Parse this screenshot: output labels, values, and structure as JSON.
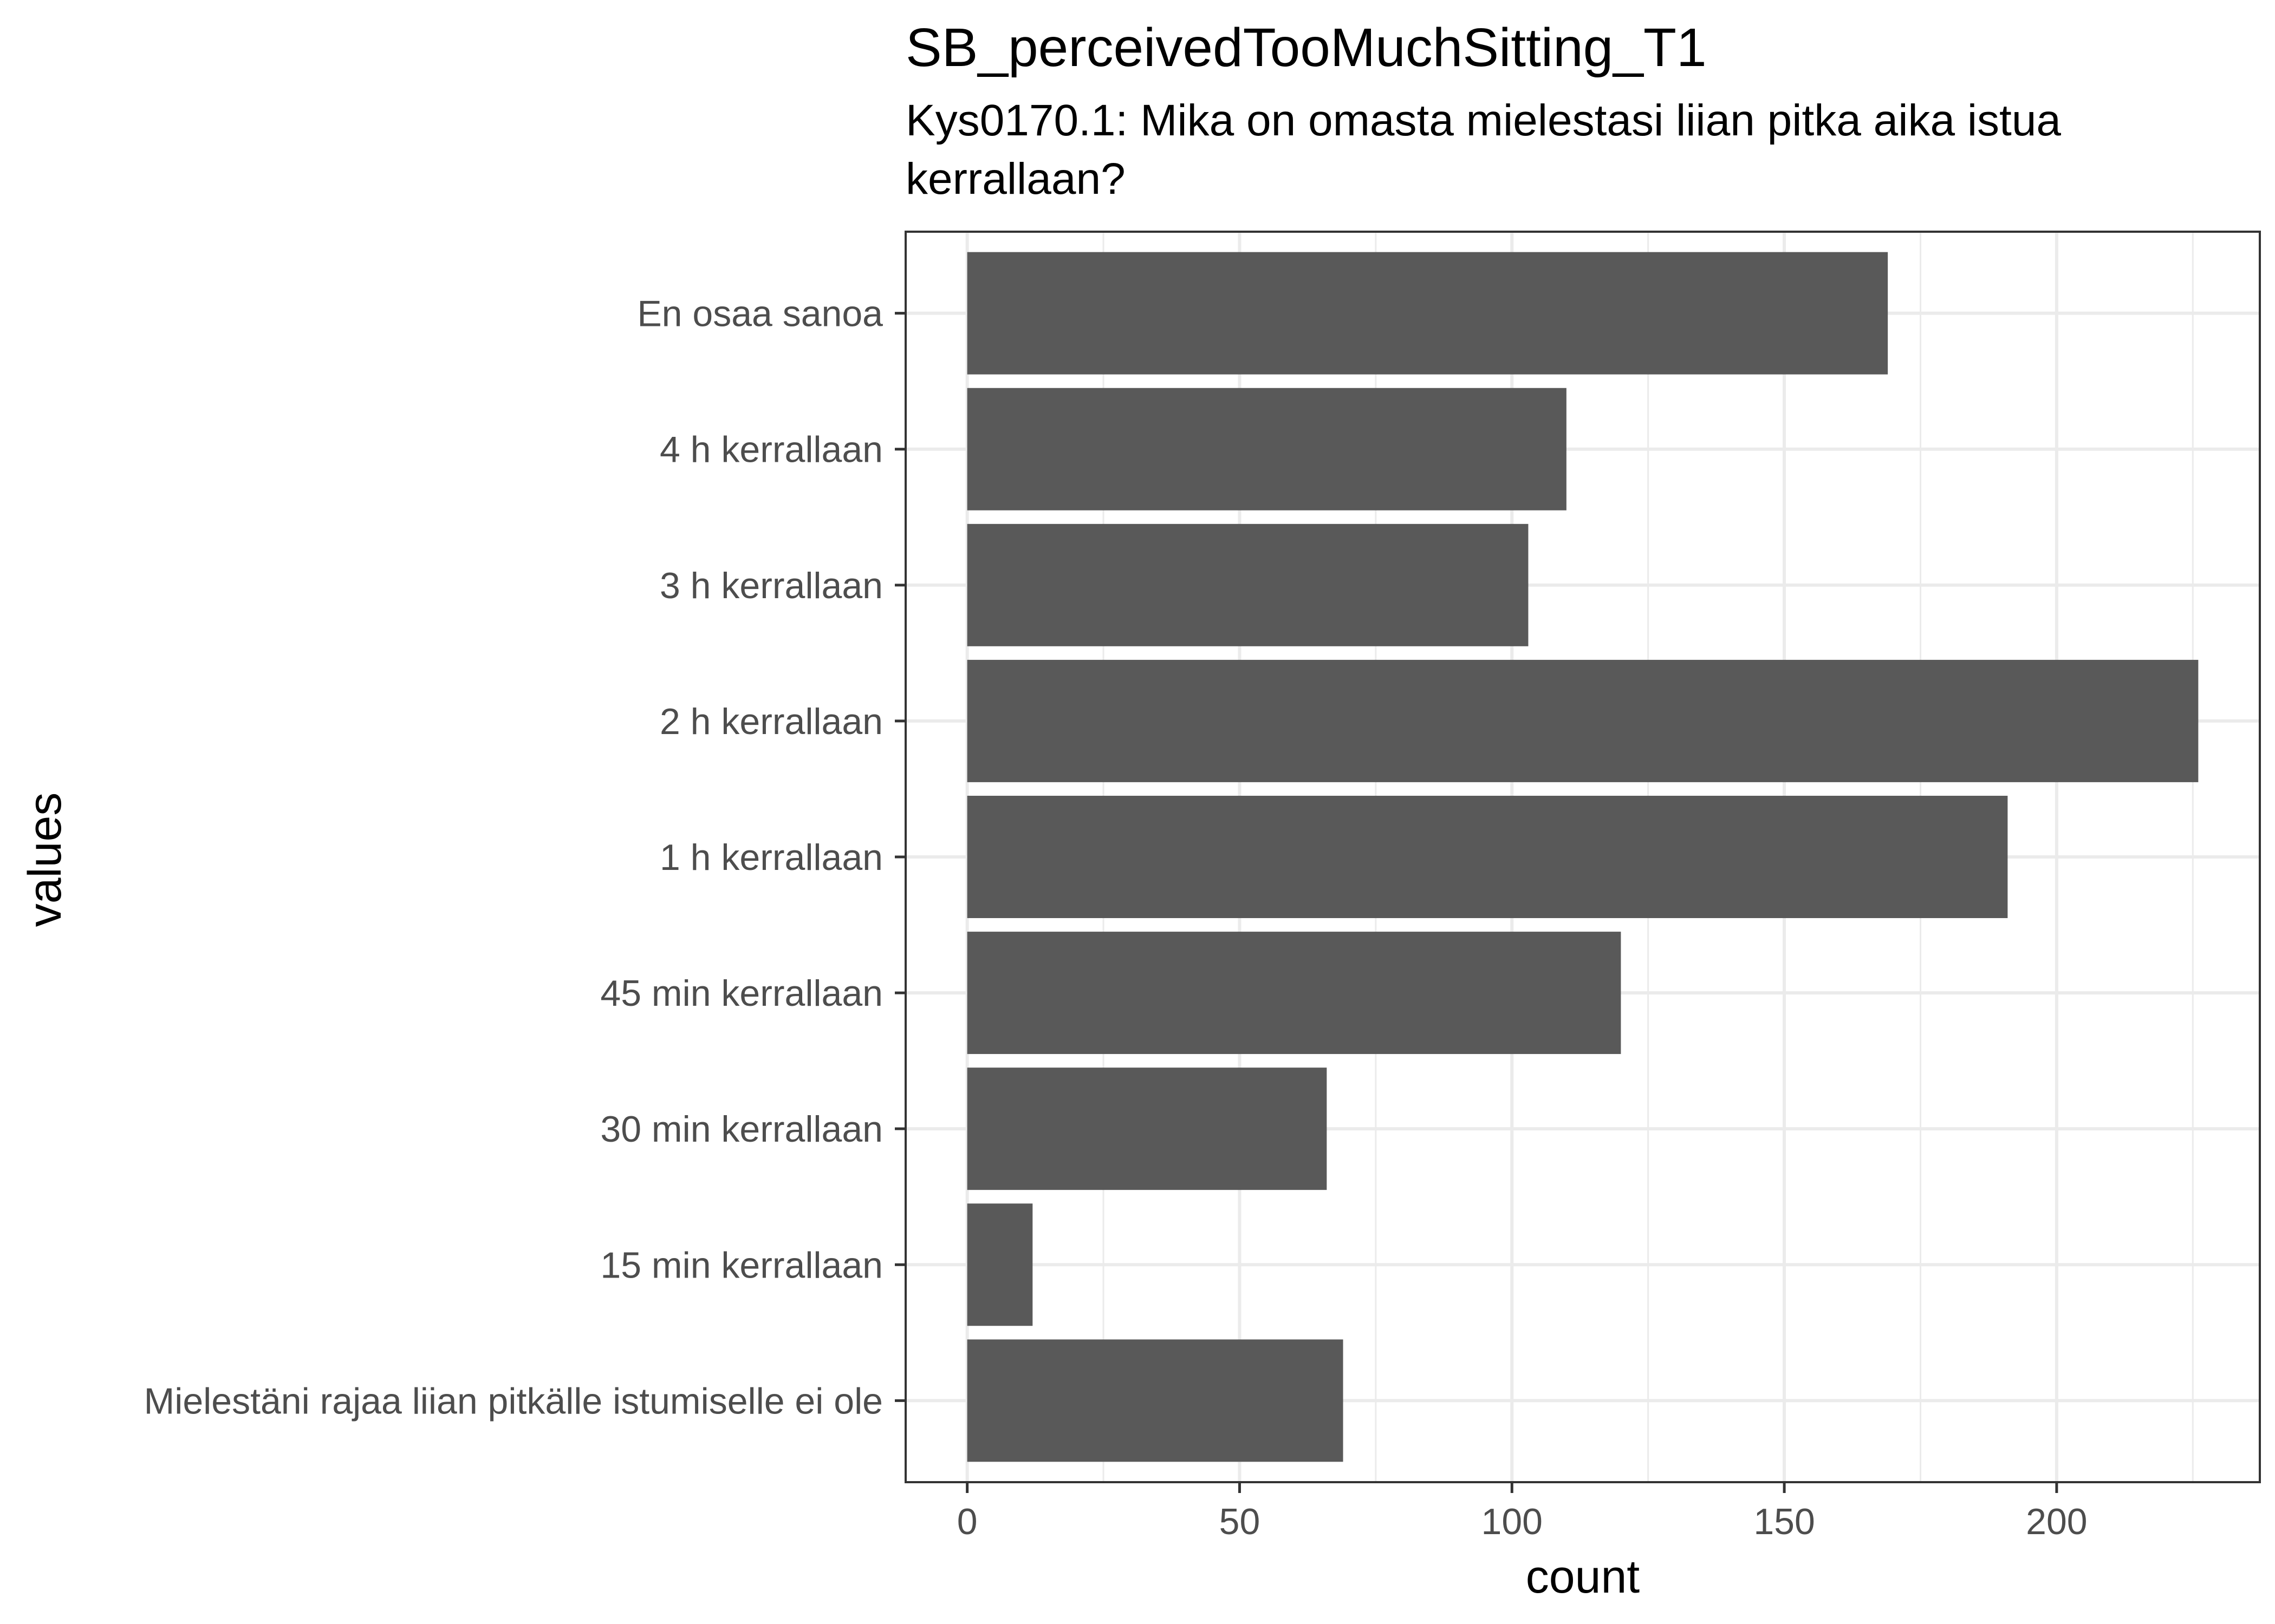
{
  "chart_data": {
    "type": "bar",
    "orientation": "horizontal",
    "title": "SB_perceivedTooMuchSitting_T1",
    "subtitle_lines": [
      "Kys0170.1: Mika on omasta mielestasi liian pitka aika istua",
      "kerrallaan?"
    ],
    "xlabel": "count",
    "ylabel": "values",
    "categories": [
      "En osaa sanoa",
      "4 h kerrallaan",
      "3 h kerrallaan",
      "2 h kerrallaan",
      "1 h kerrallaan",
      "45 min kerrallaan",
      "30 min kerrallaan",
      "15 min kerrallaan",
      "Mielestäni rajaa liian pitkälle istumiselle ei ole"
    ],
    "values": [
      169,
      110,
      103,
      226,
      191,
      120,
      66,
      12,
      69
    ],
    "xlim": [
      -11.3,
      237.3
    ],
    "x_ticks": [
      0,
      50,
      100,
      150,
      200
    ],
    "x_tick_labels": [
      "0",
      "50",
      "100",
      "150",
      "200"
    ],
    "grid": true,
    "bar_color": "#595959",
    "theme": "bw"
  }
}
